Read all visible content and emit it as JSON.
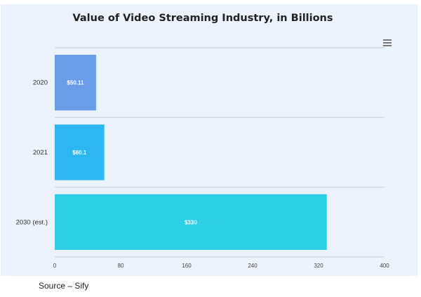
{
  "chart_data": {
    "type": "bar",
    "orientation": "horizontal",
    "title": "Value of Video Streaming Industry, in Billions",
    "categories": [
      "2020",
      "2021",
      "2030 (est.)"
    ],
    "values": [
      50.11,
      60.1,
      330
    ],
    "data_labels": [
      "$50.11",
      "$60.1",
      "$330"
    ],
    "colors": [
      "#6a9de6",
      "#2db6f1",
      "#2ccfe4"
    ],
    "xlim": [
      0,
      400
    ],
    "xticks": [
      "0",
      "80",
      "160",
      "240",
      "320",
      "400"
    ],
    "xlabel": "",
    "ylabel": "",
    "grid": true
  },
  "menu_icon": "hamburger-menu-icon",
  "source": "Source – Sify"
}
